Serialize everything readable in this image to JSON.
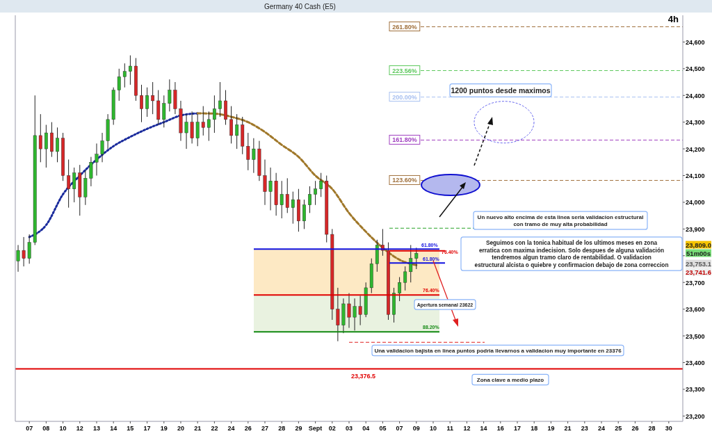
{
  "chart_data": {
    "type": "candlestick",
    "title": "Germany 40 Cash (E5)",
    "subtitle": "4h",
    "categories": [
      null,
      null,
      "07",
      null,
      null,
      "08",
      null,
      null,
      "10",
      null,
      null,
      "12",
      null,
      null,
      "13",
      null,
      null,
      "14",
      null,
      null,
      "15",
      null,
      null,
      "17",
      null,
      null,
      "19",
      null,
      null,
      "20",
      null,
      null,
      "21",
      null,
      null,
      "22",
      null,
      null,
      "24",
      null,
      null,
      "26",
      null,
      null,
      "27",
      null,
      null,
      "28",
      null,
      null,
      "29",
      null,
      null,
      "Sept",
      null,
      null,
      "02",
      null,
      null,
      "03",
      null,
      null,
      "04",
      null,
      null,
      "05",
      null,
      null,
      "07",
      null,
      null,
      "09",
      null,
      null,
      "10",
      null,
      null,
      "11",
      null,
      null,
      "12",
      null,
      null,
      "14",
      null,
      null,
      "16",
      null,
      null,
      "17",
      null,
      null,
      "18",
      null,
      null,
      "19",
      null,
      null,
      "21",
      null,
      null,
      "23",
      null,
      null,
      "24",
      null,
      null,
      "25",
      null,
      null,
      "26",
      null,
      null,
      "28",
      null,
      null,
      "30",
      null,
      null
    ],
    "ohlc": [
      [
        23780,
        23840,
        23740,
        23820
      ],
      [
        23820,
        23870,
        23760,
        23790
      ],
      [
        23790,
        23880,
        23770,
        23850
      ],
      [
        23850,
        24400,
        23840,
        24250
      ],
      [
        24250,
        24330,
        24150,
        24200
      ],
      [
        24200,
        24290,
        24130,
        24260
      ],
      [
        24260,
        24300,
        24170,
        24190
      ],
      [
        24190,
        24280,
        24150,
        24240
      ],
      [
        24240,
        24260,
        24080,
        24100
      ],
      [
        24100,
        24160,
        23980,
        24050
      ],
      [
        24050,
        24130,
        24000,
        24110
      ],
      [
        24110,
        24140,
        23950,
        24020
      ],
      [
        24020,
        24120,
        23990,
        24090
      ],
      [
        24090,
        24170,
        24060,
        24150
      ],
      [
        24150,
        24220,
        24100,
        24180
      ],
      [
        24180,
        24260,
        24150,
        24230
      ],
      [
        24230,
        24330,
        24200,
        24310
      ],
      [
        24310,
        24430,
        24290,
        24420
      ],
      [
        24420,
        24500,
        24380,
        24470
      ],
      [
        24470,
        24520,
        24430,
        24490
      ],
      [
        24490,
        24550,
        24440,
        24510
      ],
      [
        24510,
        24540,
        24380,
        24400
      ],
      [
        24400,
        24440,
        24300,
        24350
      ],
      [
        24350,
        24430,
        24320,
        24400
      ],
      [
        24400,
        24450,
        24330,
        24380
      ],
      [
        24380,
        24420,
        24290,
        24310
      ],
      [
        24310,
        24400,
        24280,
        24370
      ],
      [
        24370,
        24460,
        24340,
        24420
      ],
      [
        24420,
        24450,
        24330,
        24350
      ],
      [
        24350,
        24380,
        24230,
        24260
      ],
      [
        24260,
        24330,
        24200,
        24300
      ],
      [
        24300,
        24340,
        24220,
        24240
      ],
      [
        24240,
        24330,
        24210,
        24300
      ],
      [
        24300,
        24360,
        24250,
        24280
      ],
      [
        24280,
        24340,
        24230,
        24310
      ],
      [
        24310,
        24400,
        24260,
        24350
      ],
      [
        24350,
        24450,
        24320,
        24380
      ],
      [
        24380,
        24420,
        24290,
        24310
      ],
      [
        24310,
        24360,
        24220,
        24250
      ],
      [
        24250,
        24330,
        24200,
        24290
      ],
      [
        24290,
        24320,
        24180,
        24210
      ],
      [
        24210,
        24260,
        24120,
        24160
      ],
      [
        24160,
        24240,
        24110,
        24200
      ],
      [
        24200,
        24230,
        24080,
        24100
      ],
      [
        24100,
        24160,
        23990,
        24040
      ],
      [
        24040,
        24130,
        23970,
        24080
      ],
      [
        24080,
        24110,
        23950,
        23990
      ],
      [
        23990,
        24080,
        23940,
        24030
      ],
      [
        24030,
        24090,
        23960,
        23980
      ],
      [
        23980,
        24040,
        23920,
        24010
      ],
      [
        24010,
        24050,
        23890,
        23930
      ],
      [
        23930,
        24010,
        23900,
        23990
      ],
      [
        23990,
        24060,
        23960,
        24030
      ],
      [
        24030,
        24080,
        23990,
        24050
      ],
      [
        24050,
        24110,
        24020,
        24080
      ],
      [
        24080,
        24100,
        23850,
        23880
      ],
      [
        23880,
        23900,
        23560,
        23600
      ],
      [
        23600,
        23680,
        23480,
        23540
      ],
      [
        23540,
        23640,
        23510,
        23620
      ],
      [
        23620,
        23660,
        23530,
        23570
      ],
      [
        23570,
        23640,
        23520,
        23610
      ],
      [
        23610,
        23650,
        23540,
        23580
      ],
      [
        23580,
        23700,
        23570,
        23680
      ],
      [
        23680,
        23790,
        23660,
        23770
      ],
      [
        23770,
        23860,
        23740,
        23840
      ],
      [
        23840,
        23900,
        23800,
        23820
      ],
      [
        23820,
        23850,
        23560,
        23580
      ],
      [
        23580,
        23680,
        23550,
        23660
      ],
      [
        23660,
        23720,
        23630,
        23700
      ],
      [
        23700,
        23760,
        23670,
        23740
      ],
      [
        23740,
        23840,
        23700,
        23790
      ],
      [
        23790,
        23830,
        23750,
        23809
      ],
      null,
      null,
      null,
      null,
      null,
      null,
      null,
      null,
      null,
      null,
      null,
      null,
      null,
      null,
      null,
      null,
      null,
      null,
      null,
      null,
      null,
      null,
      null,
      null,
      null,
      null,
      null,
      null,
      null,
      null,
      null,
      null,
      null,
      null,
      null,
      null,
      null,
      null,
      null,
      null,
      null,
      null,
      null,
      null,
      null,
      null,
      null
    ],
    "colors": [
      "#2fb62f",
      "#d62728",
      "#2fb62f",
      "#2fb62f",
      "#d62728",
      "#2fb62f",
      "#d62728",
      "#2fb62f",
      "#d62728",
      "#d62728",
      "#2fb62f",
      "#d62728",
      "#2fb62f",
      "#2fb62f",
      "#2fb62f",
      "#2fb62f",
      "#2fb62f",
      "#2fb62f",
      "#2fb62f",
      "#2fb62f",
      "#2fb62f",
      "#d62728",
      "#d62728",
      "#2fb62f",
      "#d62728",
      "#d62728",
      "#2fb62f",
      "#2fb62f",
      "#d62728",
      "#d62728",
      "#2fb62f",
      "#d62728",
      "#2fb62f",
      "#d62728",
      "#2fb62f",
      "#2fb62f",
      "#2fb62f",
      "#d62728",
      "#d62728",
      "#2fb62f",
      "#d62728",
      "#d62728",
      "#2fb62f",
      "#d62728",
      "#d62728",
      "#2fb62f",
      "#d62728",
      "#2fb62f",
      "#d62728",
      "#2fb62f",
      "#d62728",
      "#2fb62f",
      "#2fb62f",
      "#2fb62f",
      "#2fb62f",
      "#d62728",
      "#d62728",
      "#d62728",
      "#2fb62f",
      "#d62728",
      "#2fb62f",
      "#d62728",
      "#2fb62f",
      "#2fb62f",
      "#2fb62f",
      "#d62728",
      "#d62728",
      "#2fb62f",
      "#2fb62f",
      "#2fb62f",
      "#2fb62f",
      "#2fb62f",
      null,
      null,
      null,
      null,
      null,
      null,
      null,
      null,
      null,
      null,
      null,
      null,
      null,
      null,
      null,
      null,
      null,
      null,
      null,
      null,
      null,
      null,
      null,
      null,
      null,
      null,
      null,
      null,
      null,
      null,
      null,
      null,
      null,
      null,
      null,
      null,
      null,
      null,
      null,
      null,
      null,
      null,
      null,
      null,
      null,
      null,
      null
    ],
    "series": [
      {
        "type": "line",
        "color": "#1a2b9c",
        "line_style": "dotted",
        "values": [
          null,
          null,
          23870,
          null,
          null,
          23915,
          null,
          null,
          24030,
          null,
          null,
          24100,
          null,
          null,
          24160,
          null,
          null,
          24210,
          null,
          null,
          24245,
          null,
          null,
          24275,
          null,
          null,
          24300,
          null,
          null,
          24325,
          null,
          null,
          24333,
          null,
          null,
          null,
          null,
          null,
          null,
          null,
          null,
          null,
          null,
          null,
          null,
          null,
          null,
          null,
          null,
          null,
          null,
          null,
          null,
          null,
          null,
          null,
          null,
          null,
          null,
          null,
          null,
          null,
          null,
          null,
          null,
          null,
          null,
          null,
          null,
          null,
          null,
          null,
          null,
          null,
          null,
          null,
          null,
          null,
          null,
          null,
          null,
          null,
          null,
          null,
          null,
          null,
          null,
          null,
          null,
          null,
          null,
          null,
          null,
          null,
          null,
          null,
          null,
          null,
          null,
          null,
          null,
          null,
          null,
          null,
          null,
          null,
          null,
          null,
          null,
          null,
          null,
          null,
          null,
          null,
          null,
          null,
          null,
          null,
          null
        ]
      },
      {
        "type": "line",
        "color": "#a0782a",
        "line_style": "dashed",
        "values": [
          null,
          null,
          null,
          null,
          null,
          null,
          null,
          null,
          null,
          null,
          null,
          null,
          null,
          null,
          null,
          null,
          null,
          null,
          null,
          null,
          null,
          null,
          null,
          null,
          null,
          null,
          null,
          null,
          null,
          null,
          null,
          null,
          24333,
          null,
          null,
          24332,
          null,
          null,
          24320,
          null,
          null,
          24300,
          null,
          null,
          24263,
          null,
          null,
          24215,
          null,
          null,
          24170,
          null,
          null,
          24100,
          null,
          null,
          24050,
          null,
          null,
          23960,
          null,
          null,
          23890,
          null,
          null,
          23830,
          null,
          null,
          23785,
          null,
          null,
          23765,
          null,
          null,
          null,
          null,
          null,
          null,
          null,
          null,
          null,
          null,
          null,
          null,
          null,
          null,
          null,
          null,
          null,
          null,
          null,
          null,
          null,
          null,
          null,
          null,
          null,
          null,
          null,
          null,
          null,
          null,
          null,
          null,
          null,
          null,
          null,
          null,
          null,
          null,
          null,
          null,
          null,
          null,
          null,
          null,
          null,
          null,
          null
        ]
      }
    ],
    "ylim": [
      23180,
      24700
    ],
    "yticks": [
      {
        "value": 23200,
        "label": "23,200"
      },
      {
        "value": 23300,
        "label": "23,300"
      },
      {
        "value": 23400,
        "label": "23,400"
      },
      {
        "value": 23500,
        "label": "23,500"
      },
      {
        "value": 23600,
        "label": "23,600"
      },
      {
        "value": 23700,
        "label": "23,700"
      },
      {
        "value": 23800,
        "label": null
      },
      {
        "value": 23900,
        "label": "23,900"
      },
      {
        "value": 24000,
        "label": "24,000"
      },
      {
        "value": 24100,
        "label": "24,100"
      },
      {
        "value": 24200,
        "label": "24,200"
      },
      {
        "value": 24300,
        "label": "24,300"
      },
      {
        "value": 24400,
        "label": "24,400"
      },
      {
        "value": 24500,
        "label": "24,500"
      },
      {
        "value": 24600,
        "label": "24,600"
      }
    ],
    "ref_lines": [
      {
        "axis": "y",
        "value": 24657,
        "color": "#a0703c",
        "line_style": "dashed"
      },
      {
        "axis": "y",
        "value": 24493,
        "color": "#5cc85c",
        "line_style": "dashed"
      },
      {
        "axis": "y",
        "value": 24394,
        "color": "#a8c0f0",
        "line_style": "dashed"
      },
      {
        "axis": "y",
        "value": 24233,
        "color": "#a040c0",
        "line_style": "dashed"
      },
      {
        "axis": "y",
        "value": 24082,
        "color": "#a0703c",
        "line_style": "dashed"
      },
      {
        "axis": "y",
        "value": 23825,
        "color": "#1010e0",
        "line_style": "solid"
      },
      {
        "axis": "y",
        "value": 23818,
        "color": "#e00000",
        "line_style": "solid"
      },
      {
        "axis": "y",
        "value": 23773,
        "color": "#1010e0",
        "line_style": "solid"
      },
      {
        "axis": "y",
        "value": 23653,
        "color": "#e00000",
        "line_style": "solid"
      },
      {
        "axis": "y",
        "value": 23515,
        "color": "#118811",
        "line_style": "solid"
      },
      {
        "axis": "y",
        "value": 23903,
        "color": "#22a022",
        "line_style": "dashed"
      },
      {
        "axis": "y",
        "value": 23476,
        "color": "#e02020",
        "line_style": "dashed"
      },
      {
        "axis": "y",
        "value": 23376.5,
        "label": "23,376.5",
        "color": "#e00000",
        "line_style": "solid"
      }
    ],
    "bands": [
      {
        "axis": "y",
        "from": 23653,
        "to": 23825,
        "color": "#fde3b5"
      },
      {
        "axis": "y",
        "from": 23515,
        "to": 23653,
        "color": "#e4efd8"
      }
    ],
    "annotations": [
      "1200 puntos desde maximos",
      "Un nuevo alto encima de esta linea seria validacion estructural\ncon tramo de muy alta probabilidad",
      "Seguimos con la tonica habitual de los ultimos meses en zona\nerratica con maxima indecision. Solo despues de alguna validación\ntendremos algun tramo claro de rentabilidad. O validacion\nestructural alcista o quiebre y confirmacion debajo de zona correccion",
      "Apertura semanal 23622",
      "Una validacion bajista en linea puntos podria llevarnos a validacion muy importante en 23376",
      "Zona clave a medio plazo",
      "23,809.0",
      "51m00s",
      "23,753.1",
      "23,741.6",
      "261.80%",
      "223.56%",
      "200.00%",
      "161.80%",
      "123.60%",
      {
        "text": "61.80%",
        "y": 23825
      },
      "76.40%",
      "61.80%",
      {
        "text": "76.40%",
        "y": 23653
      },
      {
        "text": "88.20%",
        "y": 23515
      }
    ]
  }
}
